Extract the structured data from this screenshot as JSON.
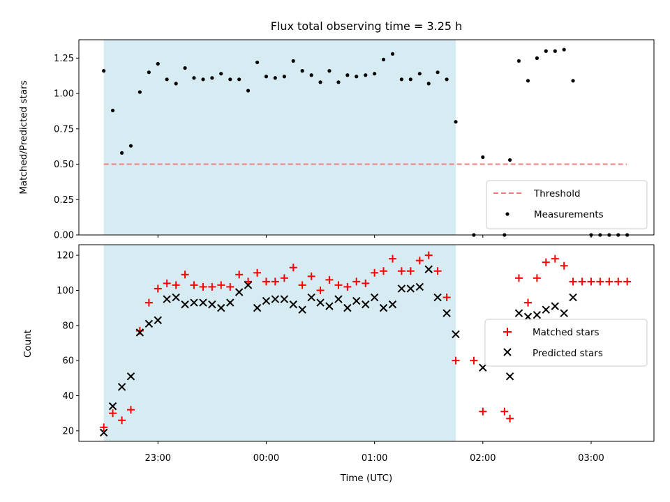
{
  "chart_data": [
    {
      "type": "scatter",
      "title": "Flux total observing time = 3.25 h",
      "xlabel": "",
      "ylabel": "Matched/Predicted stars",
      "x_unit": "hours since 00:00 UTC",
      "xlim": [
        -1.73,
        3.58
      ],
      "ylim": [
        0,
        1.38
      ],
      "yticks": [
        0,
        0.25,
        0.5,
        0.75,
        1.0,
        1.25
      ],
      "ytick_labels": [
        "0.00",
        "0.25",
        "0.50",
        "0.75",
        "1.00",
        "1.25"
      ],
      "xticks": [
        -1,
        0,
        1,
        2,
        3
      ],
      "observing_window": {
        "start": -1.5,
        "end": 1.75,
        "color": "#add8e6"
      },
      "threshold": {
        "label": "Threshold",
        "y": 0.5,
        "x_start": -1.5,
        "x_end": 3.33,
        "color": "#f08080"
      },
      "legend": {
        "location": "lower right",
        "entries": [
          "Threshold",
          "Measurements"
        ]
      },
      "series": [
        {
          "name": "Measurements",
          "color": "#000000",
          "points": [
            [
              -1.5,
              1.16
            ],
            [
              -1.417,
              0.88
            ],
            [
              -1.333,
              0.58
            ],
            [
              -1.25,
              0.63
            ],
            [
              -1.167,
              1.01
            ],
            [
              -1.083,
              1.15
            ],
            [
              -1.0,
              1.21
            ],
            [
              -0.917,
              1.1
            ],
            [
              -0.833,
              1.07
            ],
            [
              -0.75,
              1.18
            ],
            [
              -0.667,
              1.11
            ],
            [
              -0.583,
              1.1
            ],
            [
              -0.5,
              1.11
            ],
            [
              -0.417,
              1.14
            ],
            [
              -0.333,
              1.1
            ],
            [
              -0.25,
              1.1
            ],
            [
              -0.167,
              1.02
            ],
            [
              -0.083,
              1.22
            ],
            [
              0.0,
              1.12
            ],
            [
              0.083,
              1.11
            ],
            [
              0.167,
              1.12
            ],
            [
              0.25,
              1.23
            ],
            [
              0.333,
              1.16
            ],
            [
              0.417,
              1.13
            ],
            [
              0.5,
              1.08
            ],
            [
              0.583,
              1.16
            ],
            [
              0.667,
              1.08
            ],
            [
              0.75,
              1.13
            ],
            [
              0.833,
              1.12
            ],
            [
              0.917,
              1.13
            ],
            [
              1.0,
              1.14
            ],
            [
              1.083,
              1.24
            ],
            [
              1.167,
              1.28
            ],
            [
              1.25,
              1.1
            ],
            [
              1.333,
              1.1
            ],
            [
              1.417,
              1.14
            ],
            [
              1.5,
              1.07
            ],
            [
              1.583,
              1.15
            ],
            [
              1.667,
              1.1
            ],
            [
              1.75,
              0.8
            ],
            [
              1.917,
              0.0
            ],
            [
              2.0,
              0.55
            ],
            [
              2.2,
              0.0
            ],
            [
              2.25,
              0.53
            ],
            [
              2.333,
              1.23
            ],
            [
              2.417,
              1.09
            ],
            [
              2.5,
              1.25
            ],
            [
              2.583,
              1.3
            ],
            [
              2.667,
              1.3
            ],
            [
              2.75,
              1.31
            ],
            [
              2.833,
              1.09
            ],
            [
              3.0,
              0.0
            ],
            [
              3.083,
              0.0
            ],
            [
              3.167,
              0.0
            ],
            [
              3.25,
              0.0
            ],
            [
              3.333,
              0.0
            ]
          ]
        }
      ]
    },
    {
      "type": "scatter",
      "title": "",
      "xlabel": "Time (UTC)",
      "ylabel": "Count",
      "x_unit": "hours since 00:00 UTC",
      "xlim": [
        -1.73,
        3.58
      ],
      "ylim": [
        14,
        126
      ],
      "yticks": [
        20,
        40,
        60,
        80,
        100,
        120
      ],
      "ytick_labels": [
        "20",
        "40",
        "60",
        "80",
        "100",
        "120"
      ],
      "xticks": [
        -1,
        0,
        1,
        2,
        3
      ],
      "xtick_labels": [
        "23:00",
        "00:00",
        "01:00",
        "02:00",
        "03:00"
      ],
      "observing_window": {
        "start": -1.5,
        "end": 1.75,
        "color": "#add8e6"
      },
      "legend": {
        "location": "center right",
        "entries": [
          "Matched stars",
          "Predicted stars"
        ]
      },
      "series": [
        {
          "name": "Matched stars",
          "marker": "+",
          "color": "#ff0000",
          "points": [
            [
              -1.5,
              22
            ],
            [
              -1.417,
              30
            ],
            [
              -1.333,
              26
            ],
            [
              -1.25,
              32
            ],
            [
              -1.167,
              77
            ],
            [
              -1.083,
              93
            ],
            [
              -1.0,
              101
            ],
            [
              -0.917,
              104
            ],
            [
              -0.833,
              103
            ],
            [
              -0.75,
              109
            ],
            [
              -0.667,
              103
            ],
            [
              -0.583,
              102
            ],
            [
              -0.5,
              102
            ],
            [
              -0.417,
              103
            ],
            [
              -0.333,
              102
            ],
            [
              -0.25,
              109
            ],
            [
              -0.167,
              105
            ],
            [
              -0.083,
              110
            ],
            [
              0.0,
              105
            ],
            [
              0.083,
              105
            ],
            [
              0.167,
              107
            ],
            [
              0.25,
              113
            ],
            [
              0.333,
              103
            ],
            [
              0.417,
              108
            ],
            [
              0.5,
              100
            ],
            [
              0.583,
              106
            ],
            [
              0.667,
              103
            ],
            [
              0.75,
              102
            ],
            [
              0.833,
              105
            ],
            [
              0.917,
              104
            ],
            [
              1.0,
              110
            ],
            [
              1.083,
              111
            ],
            [
              1.167,
              118
            ],
            [
              1.25,
              111
            ],
            [
              1.333,
              111
            ],
            [
              1.417,
              117
            ],
            [
              1.5,
              120
            ],
            [
              1.583,
              111
            ],
            [
              1.667,
              96
            ],
            [
              1.75,
              60
            ],
            [
              1.917,
              60
            ],
            [
              2.0,
              31
            ],
            [
              2.2,
              31
            ],
            [
              2.25,
              27
            ],
            [
              2.333,
              107
            ],
            [
              2.417,
              93
            ],
            [
              2.5,
              107
            ],
            [
              2.583,
              116
            ],
            [
              2.667,
              118
            ],
            [
              2.75,
              114
            ],
            [
              2.833,
              105
            ],
            [
              2.917,
              105
            ],
            [
              3.0,
              105
            ],
            [
              3.083,
              105
            ],
            [
              3.167,
              105
            ],
            [
              3.25,
              105
            ],
            [
              3.333,
              105
            ]
          ]
        },
        {
          "name": "Predicted stars",
          "marker": "x",
          "color": "#000000",
          "points": [
            [
              -1.5,
              19
            ],
            [
              -1.417,
              34
            ],
            [
              -1.333,
              45
            ],
            [
              -1.25,
              51
            ],
            [
              -1.167,
              76
            ],
            [
              -1.083,
              81
            ],
            [
              -1.0,
              83
            ],
            [
              -0.917,
              95
            ],
            [
              -0.833,
              96
            ],
            [
              -0.75,
              92
            ],
            [
              -0.667,
              93
            ],
            [
              -0.583,
              93
            ],
            [
              -0.5,
              92
            ],
            [
              -0.417,
              90
            ],
            [
              -0.333,
              93
            ],
            [
              -0.25,
              99
            ],
            [
              -0.167,
              103
            ],
            [
              -0.083,
              90
            ],
            [
              0.0,
              94
            ],
            [
              0.083,
              95
            ],
            [
              0.167,
              95
            ],
            [
              0.25,
              92
            ],
            [
              0.333,
              89
            ],
            [
              0.417,
              96
            ],
            [
              0.5,
              93
            ],
            [
              0.583,
              91
            ],
            [
              0.667,
              95
            ],
            [
              0.75,
              90
            ],
            [
              0.833,
              94
            ],
            [
              0.917,
              92
            ],
            [
              1.0,
              96
            ],
            [
              1.083,
              90
            ],
            [
              1.167,
              92
            ],
            [
              1.25,
              101
            ],
            [
              1.333,
              101
            ],
            [
              1.417,
              102
            ],
            [
              1.5,
              112
            ],
            [
              1.583,
              96
            ],
            [
              1.667,
              87
            ],
            [
              1.75,
              75
            ],
            [
              2.0,
              56
            ],
            [
              2.25,
              51
            ],
            [
              2.333,
              87
            ],
            [
              2.417,
              85
            ],
            [
              2.5,
              86
            ],
            [
              2.583,
              89
            ],
            [
              2.667,
              91
            ],
            [
              2.75,
              87
            ],
            [
              2.833,
              96
            ]
          ]
        }
      ]
    }
  ]
}
